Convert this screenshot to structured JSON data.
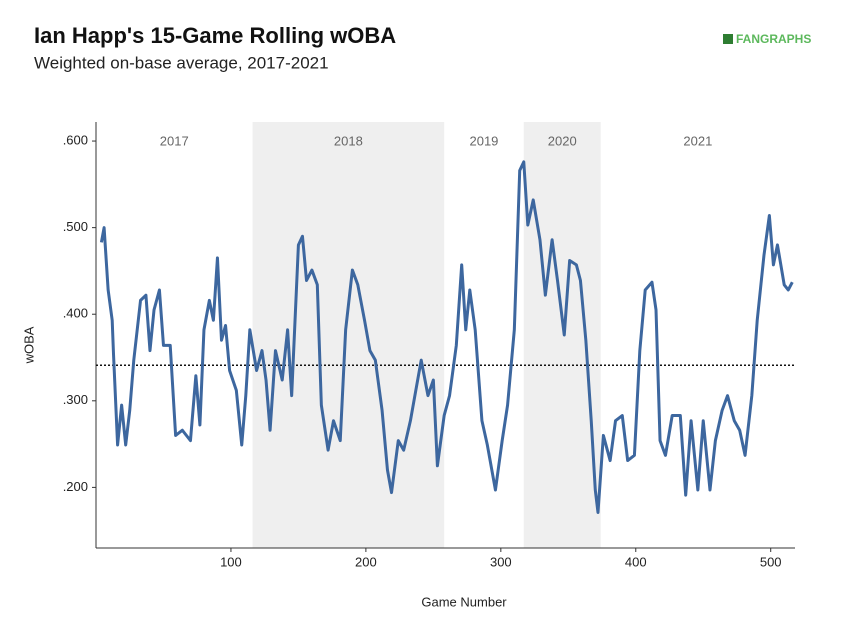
{
  "chart_data": {
    "type": "line",
    "title": "Ian Happ's 15-Game Rolling wOBA",
    "subtitle": "Weighted on-base average, 2017-2021",
    "brand": "FANGRAPHS",
    "xlabel": "Game Number",
    "ylabel": "wOBA",
    "xlim": [
      0,
      518
    ],
    "ylim": [
      0.13,
      0.622
    ],
    "xticks": [
      100,
      200,
      300,
      400,
      500
    ],
    "yticks": [
      {
        "value": 0.2,
        "label": ".200"
      },
      {
        "value": 0.3,
        "label": ".300"
      },
      {
        "value": 0.4,
        "label": ".400"
      },
      {
        "value": 0.5,
        "label": ".500"
      },
      {
        "value": 0.6,
        "label": ".600"
      }
    ],
    "reference_line": 0.341,
    "seasons": [
      {
        "label": "2017",
        "start": 0,
        "end": 116,
        "shaded": false
      },
      {
        "label": "2018",
        "start": 116,
        "end": 258,
        "shaded": true
      },
      {
        "label": "2019",
        "start": 258,
        "end": 317,
        "shaded": false
      },
      {
        "label": "2020",
        "start": 317,
        "end": 374,
        "shaded": true
      },
      {
        "label": "2021",
        "start": 374,
        "end": 518,
        "shaded": false
      }
    ],
    "series": [
      {
        "color": "#3d679f",
        "x": [
          4,
          6,
          9,
          12,
          13,
          16,
          19,
          22,
          25,
          28,
          33,
          37,
          40,
          43,
          47,
          50,
          55,
          59,
          64,
          70,
          74,
          77,
          80,
          84,
          87,
          90,
          93,
          96,
          99,
          104,
          108,
          111,
          114,
          119,
          123,
          126,
          129,
          133,
          138,
          142,
          145,
          150,
          153,
          156,
          160,
          164,
          167,
          172,
          176,
          181,
          185,
          190,
          194,
          199,
          203,
          207,
          212,
          216,
          219,
          224,
          228,
          233,
          237,
          241,
          246,
          250,
          253,
          258,
          262,
          267,
          271,
          274,
          277,
          281,
          286,
          290,
          296,
          301,
          305,
          310,
          314,
          317,
          320,
          324,
          329,
          333,
          338,
          342,
          347,
          351,
          356,
          359,
          363,
          367,
          370,
          372,
          376,
          381,
          385,
          390,
          394,
          399,
          403,
          407,
          412,
          415,
          418,
          422,
          427,
          433,
          437,
          441,
          446,
          450,
          455,
          459,
          464,
          468,
          473,
          477,
          481,
          486,
          490,
          495,
          499,
          502,
          505,
          510,
          513,
          516
        ],
        "values": [
          0.483,
          0.5,
          0.428,
          0.393,
          0.353,
          0.249,
          0.295,
          0.249,
          0.289,
          0.347,
          0.416,
          0.422,
          0.358,
          0.405,
          0.428,
          0.364,
          0.364,
          0.26,
          0.266,
          0.254,
          0.329,
          0.272,
          0.382,
          0.416,
          0.393,
          0.465,
          0.37,
          0.387,
          0.335,
          0.312,
          0.249,
          0.306,
          0.382,
          0.335,
          0.358,
          0.324,
          0.266,
          0.358,
          0.324,
          0.382,
          0.306,
          0.48,
          0.49,
          0.439,
          0.451,
          0.434,
          0.295,
          0.243,
          0.277,
          0.254,
          0.382,
          0.451,
          0.434,
          0.393,
          0.358,
          0.347,
          0.289,
          0.22,
          0.194,
          0.254,
          0.243,
          0.277,
          0.312,
          0.347,
          0.306,
          0.324,
          0.225,
          0.283,
          0.306,
          0.364,
          0.457,
          0.382,
          0.428,
          0.382,
          0.277,
          0.249,
          0.197,
          0.254,
          0.295,
          0.382,
          0.566,
          0.576,
          0.503,
          0.532,
          0.486,
          0.422,
          0.486,
          0.439,
          0.376,
          0.462,
          0.457,
          0.439,
          0.37,
          0.277,
          0.197,
          0.171,
          0.26,
          0.231,
          0.277,
          0.283,
          0.231,
          0.237,
          0.358,
          0.428,
          0.437,
          0.405,
          0.254,
          0.237,
          0.283,
          0.283,
          0.191,
          0.277,
          0.197,
          0.277,
          0.197,
          0.254,
          0.289,
          0.306,
          0.277,
          0.266,
          0.237,
          0.306,
          0.393,
          0.468,
          0.514,
          0.457,
          0.48,
          0.434,
          0.428,
          0.437
        ]
      }
    ]
  }
}
